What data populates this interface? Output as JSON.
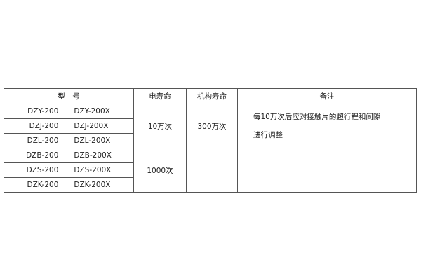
{
  "headers": {
    "model": "型　号",
    "electrical_life": "电寿命",
    "mechanical_life": "机构寿命",
    "remarks": "备注"
  },
  "rows": [
    {
      "model_a": "DZY-200",
      "model_b": "DZY-200X"
    },
    {
      "model_a": "DZJ-200",
      "model_b": "DZJ-200X"
    },
    {
      "model_a": "DZL-200",
      "model_b": "DZL-200X"
    },
    {
      "model_a": "DZB-200",
      "model_b": "DZB-200X"
    },
    {
      "model_a": "DZS-200",
      "model_b": "DZS-200X"
    },
    {
      "model_a": "DZK-200",
      "model_b": "DZK-200X"
    }
  ],
  "group1": {
    "electrical_life": "10万次",
    "mechanical_life": "300万次",
    "remark_line1": "每10万次后应对接触片的超行程和间隙",
    "remark_line2": "进行调整"
  },
  "group2": {
    "electrical_life": "1000次",
    "mechanical_life": "",
    "remark": ""
  }
}
